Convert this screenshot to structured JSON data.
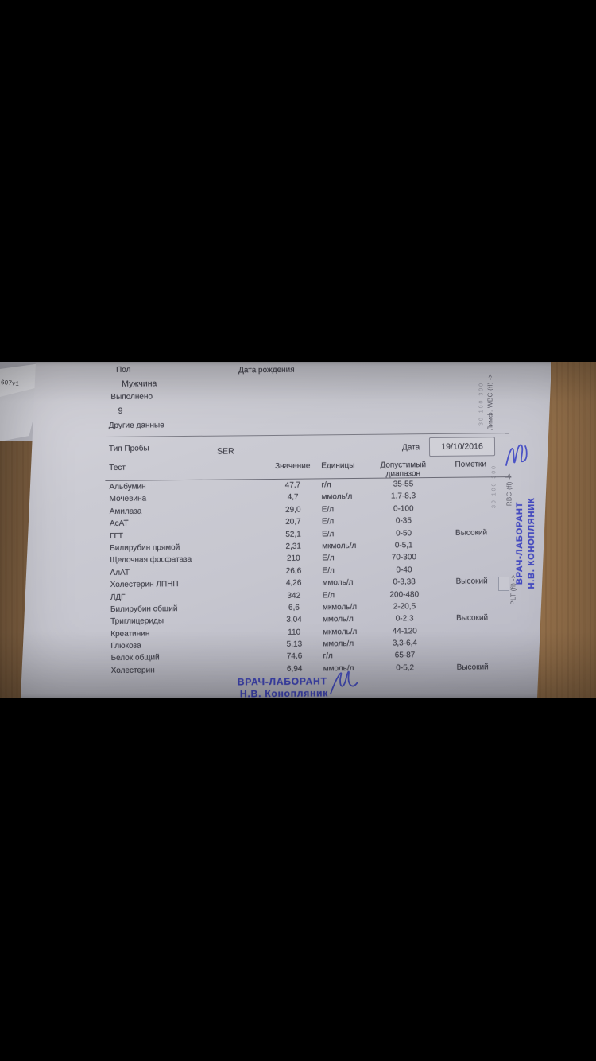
{
  "header": {
    "sex_label": "Пол",
    "sex_value": "Мужчина",
    "birthdate_label": "Дата рождения",
    "performed_label": "Выполнено",
    "performed_value": "9",
    "other_data_label": "Другие данные"
  },
  "sample": {
    "type_label": "Тип Пробы",
    "type_value": "SER",
    "date_label": "Дата",
    "date_value": "19/10/2016"
  },
  "table": {
    "col_test": "Тест",
    "col_value": "Значение",
    "col_units": "Единицы",
    "col_range_line1": "Допустимый",
    "col_range_line2": "диапазон",
    "col_notes": "Пометки",
    "rows": [
      {
        "test": "Альбумин",
        "value": "47,7",
        "units": "г/л",
        "range": "35-55",
        "note": ""
      },
      {
        "test": "Мочевина",
        "value": "4,7",
        "units": "ммоль/л",
        "range": "1,7-8,3",
        "note": ""
      },
      {
        "test": "Амилаза",
        "value": "29,0",
        "units": "Е/л",
        "range": "0-100",
        "note": ""
      },
      {
        "test": "АсАТ",
        "value": "20,7",
        "units": "Е/л",
        "range": "0-35",
        "note": ""
      },
      {
        "test": "ГГТ",
        "value": "52,1",
        "units": "Е/л",
        "range": "0-50",
        "note": "Высокий"
      },
      {
        "test": "Билирубин прямой",
        "value": "2,31",
        "units": "мкмоль/л",
        "range": "0-5,1",
        "note": ""
      },
      {
        "test": "Щелочная фосфатаза",
        "value": "210",
        "units": "Е/л",
        "range": "70-300",
        "note": ""
      },
      {
        "test": "АлАТ",
        "value": "26,6",
        "units": "Е/л",
        "range": "0-40",
        "note": ""
      },
      {
        "test": "Холестерин ЛПНП",
        "value": "4,26",
        "units": "ммоль/л",
        "range": "0-3,38",
        "note": "Высокий"
      },
      {
        "test": "ЛДГ",
        "value": "342",
        "units": "Е/л",
        "range": "200-480",
        "note": ""
      },
      {
        "test": "Билирубин общий",
        "value": "6,6",
        "units": "мкмоль/л",
        "range": "2-20,5",
        "note": ""
      },
      {
        "test": "Триглицериды",
        "value": "3,04",
        "units": "ммоль/л",
        "range": "0-2,3",
        "note": "Высокий"
      },
      {
        "test": "Креатинин",
        "value": "110",
        "units": "мкмоль/л",
        "range": "44-120",
        "note": ""
      },
      {
        "test": "Глюкоза",
        "value": "5,13",
        "units": "ммоль/л",
        "range": "3,3-6,4",
        "note": ""
      },
      {
        "test": "Белок общий",
        "value": "74,6",
        "units": "г/л",
        "range": "65-87",
        "note": ""
      },
      {
        "test": "Холестерин",
        "value": "6,94",
        "units": "ммоль/л",
        "range": "0-5,2",
        "note": "Высокий"
      }
    ]
  },
  "stamp": {
    "bottom_line1": "ВРАЧ-ЛАБОРАНТ",
    "bottom_line2": "Н.В. Конопляник",
    "side_line1": "ВРАЧ-ЛАБОРАНТ",
    "side_line2": "Н.В. КОНОПЛЯНИК",
    "ink_color": "#444ac0"
  },
  "margin": {
    "wbc": "Лимф. WBC (fl) ->",
    "rbc": "RBC (fl) ->",
    "plt": "PLT (fl) ->",
    "ticks_wbc": "30  100  300",
    "ticks_rbc": "30  100  300"
  },
  "underlying_sheet": {
    "code": "607v1"
  },
  "colors": {
    "paper": "#c8c8d0",
    "wood": "#96714a",
    "stamp_blue": "#444ac0"
  }
}
